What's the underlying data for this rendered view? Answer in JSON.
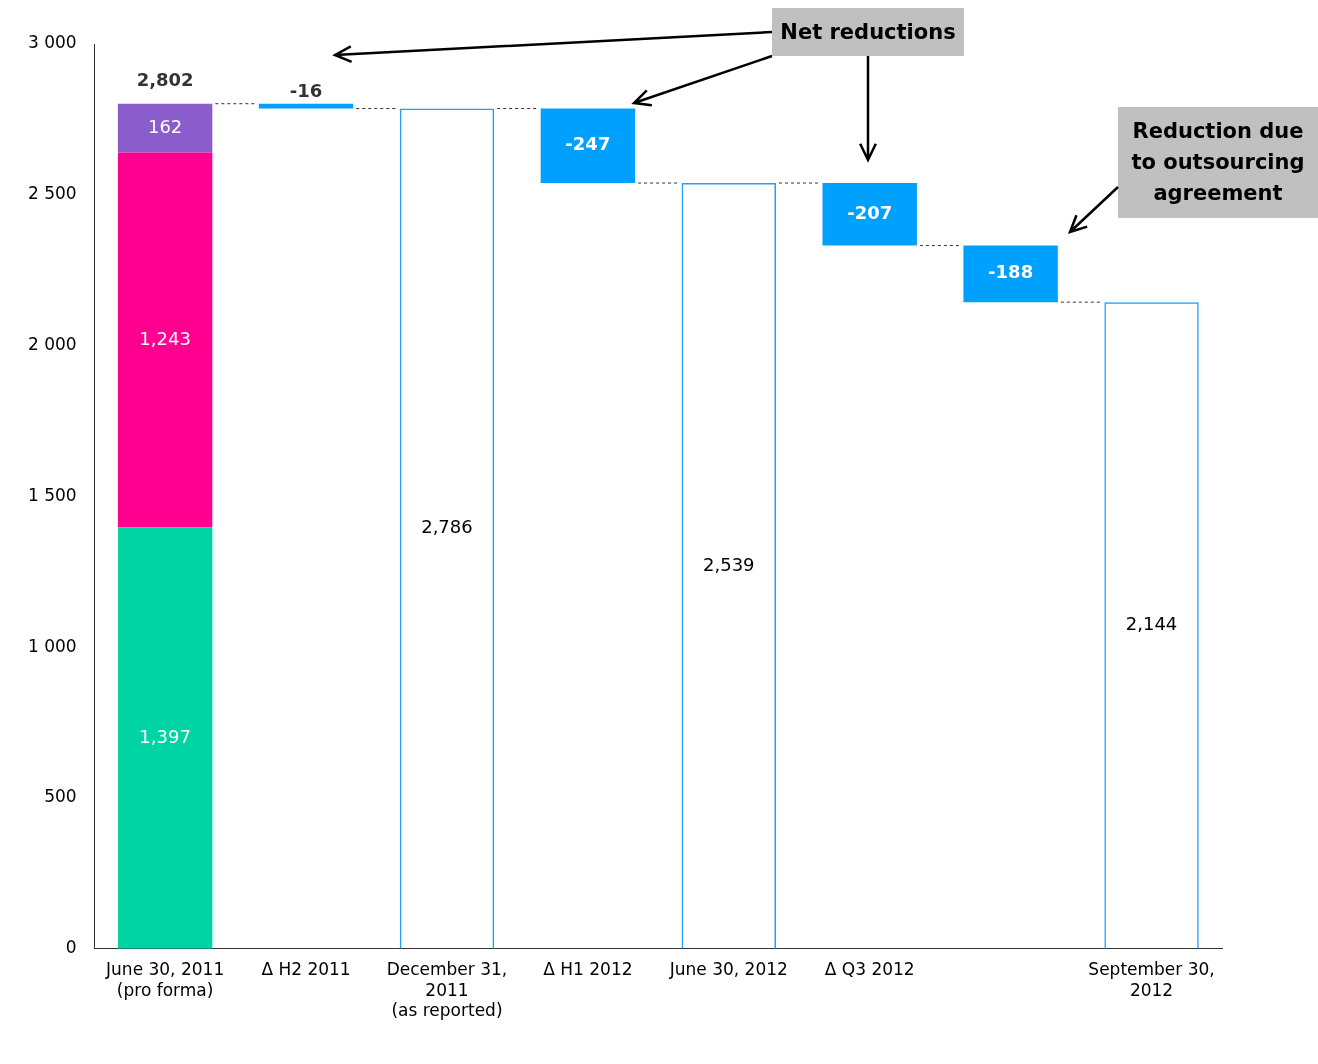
{
  "chart_data": {
    "type": "bar",
    "stacked": true,
    "categories": [
      "June 30, 2011\n(pro forma)",
      "Δ H2 2011",
      "December 31,\n2011\n(as reported)",
      "Δ H1 2012",
      "June 30, 2012",
      "Δ Q3 2012",
      null,
      "September 30,\n2012"
    ],
    "series": [
      {
        "color": "#00d4a4",
        "values": [
          1397,
          null,
          null,
          null,
          null,
          null,
          null,
          null
        ],
        "value_labels": [
          "1,397",
          null,
          null,
          null,
          null,
          null,
          null,
          null
        ]
      },
      {
        "color": "#ff0090",
        "values": [
          1243,
          null,
          null,
          null,
          null,
          null,
          null,
          null
        ],
        "value_labels": [
          "1,243",
          null,
          null,
          null,
          null,
          null,
          null,
          null
        ]
      },
      {
        "color": "#8a5ccc",
        "values": [
          162,
          null,
          null,
          null,
          null,
          null,
          null,
          null
        ],
        "value_labels": [
          "162",
          null,
          null,
          null,
          null,
          null,
          null,
          null
        ]
      },
      {
        "color": "#1f9fff",
        "values": [
          null,
          null,
          2786,
          null,
          2539,
          null,
          null,
          2144
        ],
        "value_labels": [
          null,
          null,
          "2,786",
          null,
          "2,539",
          null,
          null,
          "2,144"
        ]
      },
      {
        "color": "#00a0ff",
        "values": [
          null,
          -16,
          null,
          -247,
          null,
          -207,
          -188,
          null
        ],
        "base": [
          null,
          2802,
          null,
          2786,
          null,
          2539,
          2332,
          null
        ],
        "value_labels": [
          null,
          "-16",
          null,
          "-247",
          null,
          "-207",
          "-188",
          null
        ]
      }
    ],
    "totals": [
      "2,802",
      null,
      null,
      null,
      null,
      null,
      null,
      null
    ],
    "ylim": [
      0,
      3000
    ],
    "yticks": [
      {
        "value": 0,
        "label": "0"
      },
      {
        "value": 500,
        "label": "500"
      },
      {
        "value": 1000,
        "label": "1 000"
      },
      {
        "value": 1500,
        "label": "1 500"
      },
      {
        "value": 2000,
        "label": "2 000"
      },
      {
        "value": 2500,
        "label": "2 500"
      },
      {
        "value": 3000,
        "label": "3 000"
      }
    ],
    "grid": false,
    "legend": false,
    "annotations": [
      "Net reductions",
      "Reduction due to outsourcing agreement"
    ]
  }
}
